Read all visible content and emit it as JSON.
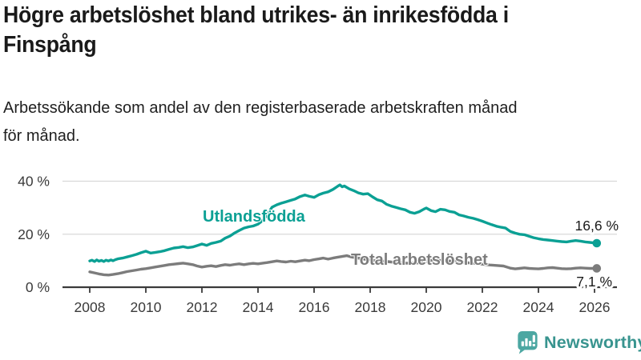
{
  "title": {
    "lines": [
      "Högre arbetslöshet bland utrikes- än inrikesfödda i",
      "Finspång"
    ]
  },
  "subtitle": {
    "lines": [
      "Arbetssökande som andel av den registerbaserade arbetskraften månad",
      "för månad."
    ]
  },
  "chart_data": {
    "type": "line",
    "title": "Högre arbetslöshet bland utrikes- än inrikesfödda i Finspång",
    "subtitle": "Arbetssökande som andel av den registerbaserade arbetskraften månad för månad.",
    "grid": true,
    "colors": {
      "grid": "#d9d9d9",
      "axis": "#3a3a3a",
      "tick_text": "#3a3a3a",
      "end_label_text": "#1a1a1a"
    },
    "x_axis": {
      "range": [
        2008,
        2026.5
      ],
      "ticks": [
        2008,
        2010,
        2012,
        2014,
        2016,
        2018,
        2020,
        2022,
        2024,
        2026
      ],
      "tick_labels": [
        "2008",
        "2010",
        "2012",
        "2014",
        "2016",
        "2018",
        "2020",
        "2022",
        "2024",
        "2026"
      ]
    },
    "y_axis": {
      "range": [
        0,
        40
      ],
      "unit": "%",
      "ticks": [
        0,
        20,
        40
      ],
      "tick_labels": [
        "0 %",
        "20 %",
        "40 %"
      ]
    },
    "series": [
      {
        "name": "Utlandsfödda",
        "color": "#0BA094",
        "end_value": 16.6,
        "end_label": "16,6 %",
        "points": [
          [
            2008.0,
            9.9
          ],
          [
            2008.08,
            10.2
          ],
          [
            2008.17,
            9.7
          ],
          [
            2008.25,
            10.3
          ],
          [
            2008.33,
            9.8
          ],
          [
            2008.42,
            10.1
          ],
          [
            2008.5,
            9.7
          ],
          [
            2008.58,
            10.2
          ],
          [
            2008.67,
            9.9
          ],
          [
            2008.75,
            10.3
          ],
          [
            2008.83,
            10.0
          ],
          [
            2008.92,
            10.4
          ],
          [
            2009.0,
            10.7
          ],
          [
            2009.17,
            11.0
          ],
          [
            2009.33,
            11.4
          ],
          [
            2009.5,
            11.9
          ],
          [
            2009.67,
            12.4
          ],
          [
            2009.83,
            13.0
          ],
          [
            2010.0,
            13.6
          ],
          [
            2010.17,
            12.9
          ],
          [
            2010.33,
            13.1
          ],
          [
            2010.5,
            13.4
          ],
          [
            2010.67,
            13.8
          ],
          [
            2010.83,
            14.3
          ],
          [
            2011.0,
            14.8
          ],
          [
            2011.17,
            15.0
          ],
          [
            2011.33,
            15.3
          ],
          [
            2011.5,
            14.9
          ],
          [
            2011.67,
            15.2
          ],
          [
            2011.83,
            15.7
          ],
          [
            2012.0,
            16.3
          ],
          [
            2012.17,
            15.8
          ],
          [
            2012.33,
            16.5
          ],
          [
            2012.5,
            16.9
          ],
          [
            2012.67,
            17.4
          ],
          [
            2012.83,
            18.5
          ],
          [
            2013.0,
            19.3
          ],
          [
            2013.17,
            20.5
          ],
          [
            2013.33,
            21.4
          ],
          [
            2013.5,
            22.3
          ],
          [
            2013.67,
            22.8
          ],
          [
            2013.83,
            23.1
          ],
          [
            2014.0,
            23.8
          ],
          [
            2014.17,
            25.2
          ],
          [
            2014.33,
            27.3
          ],
          [
            2014.5,
            30.2
          ],
          [
            2014.67,
            31.1
          ],
          [
            2014.83,
            31.7
          ],
          [
            2015.0,
            32.2
          ],
          [
            2015.17,
            32.8
          ],
          [
            2015.33,
            33.3
          ],
          [
            2015.5,
            34.2
          ],
          [
            2015.67,
            34.8
          ],
          [
            2015.83,
            34.3
          ],
          [
            2016.0,
            33.9
          ],
          [
            2016.17,
            34.9
          ],
          [
            2016.33,
            35.5
          ],
          [
            2016.5,
            36.0
          ],
          [
            2016.67,
            36.9
          ],
          [
            2016.83,
            38.0
          ],
          [
            2016.92,
            38.6
          ],
          [
            2017.0,
            37.9
          ],
          [
            2017.08,
            38.2
          ],
          [
            2017.25,
            37.1
          ],
          [
            2017.42,
            36.4
          ],
          [
            2017.58,
            35.6
          ],
          [
            2017.75,
            35.1
          ],
          [
            2017.92,
            35.3
          ],
          [
            2018.08,
            34.1
          ],
          [
            2018.25,
            33.0
          ],
          [
            2018.42,
            32.5
          ],
          [
            2018.58,
            31.3
          ],
          [
            2018.75,
            30.6
          ],
          [
            2018.92,
            30.1
          ],
          [
            2019.08,
            29.6
          ],
          [
            2019.25,
            29.2
          ],
          [
            2019.42,
            28.3
          ],
          [
            2019.58,
            27.9
          ],
          [
            2019.75,
            28.5
          ],
          [
            2019.92,
            29.5
          ],
          [
            2020.0,
            29.9
          ],
          [
            2020.17,
            28.9
          ],
          [
            2020.33,
            28.5
          ],
          [
            2020.5,
            29.4
          ],
          [
            2020.67,
            29.2
          ],
          [
            2020.83,
            28.6
          ],
          [
            2021.0,
            28.3
          ],
          [
            2021.17,
            27.3
          ],
          [
            2021.33,
            26.9
          ],
          [
            2021.5,
            26.4
          ],
          [
            2021.67,
            26.0
          ],
          [
            2021.83,
            25.5
          ],
          [
            2022.0,
            24.9
          ],
          [
            2022.17,
            24.2
          ],
          [
            2022.33,
            23.6
          ],
          [
            2022.5,
            23.0
          ],
          [
            2022.67,
            22.6
          ],
          [
            2022.83,
            22.3
          ],
          [
            2023.0,
            21.0
          ],
          [
            2023.17,
            20.4
          ],
          [
            2023.33,
            20.0
          ],
          [
            2023.5,
            19.8
          ],
          [
            2023.67,
            19.2
          ],
          [
            2023.83,
            18.7
          ],
          [
            2024.0,
            18.3
          ],
          [
            2024.17,
            18.0
          ],
          [
            2024.33,
            17.8
          ],
          [
            2024.5,
            17.6
          ],
          [
            2024.67,
            17.4
          ],
          [
            2024.83,
            17.2
          ],
          [
            2025.0,
            17.1
          ],
          [
            2025.17,
            17.4
          ],
          [
            2025.33,
            17.6
          ],
          [
            2025.5,
            17.4
          ],
          [
            2025.67,
            17.1
          ],
          [
            2025.83,
            16.9
          ],
          [
            2026.0,
            16.7
          ],
          [
            2026.08,
            16.6
          ]
        ]
      },
      {
        "name": "Total arbetslöshet",
        "color": "#7C7C7C",
        "end_value": 7.1,
        "end_label": "7,1 %",
        "points": [
          [
            2008.0,
            5.8
          ],
          [
            2008.17,
            5.4
          ],
          [
            2008.33,
            5.0
          ],
          [
            2008.5,
            4.7
          ],
          [
            2008.67,
            4.6
          ],
          [
            2008.83,
            4.8
          ],
          [
            2009.0,
            5.1
          ],
          [
            2009.17,
            5.5
          ],
          [
            2009.33,
            5.9
          ],
          [
            2009.5,
            6.2
          ],
          [
            2009.67,
            6.5
          ],
          [
            2009.83,
            6.8
          ],
          [
            2010.0,
            7.0
          ],
          [
            2010.17,
            7.3
          ],
          [
            2010.33,
            7.6
          ],
          [
            2010.5,
            7.9
          ],
          [
            2010.67,
            8.2
          ],
          [
            2010.83,
            8.5
          ],
          [
            2011.0,
            8.7
          ],
          [
            2011.17,
            8.9
          ],
          [
            2011.33,
            9.1
          ],
          [
            2011.5,
            8.8
          ],
          [
            2011.67,
            8.5
          ],
          [
            2011.83,
            8.0
          ],
          [
            2012.0,
            7.6
          ],
          [
            2012.17,
            7.9
          ],
          [
            2012.33,
            8.1
          ],
          [
            2012.5,
            7.8
          ],
          [
            2012.67,
            8.2
          ],
          [
            2012.83,
            8.5
          ],
          [
            2013.0,
            8.3
          ],
          [
            2013.17,
            8.6
          ],
          [
            2013.33,
            8.8
          ],
          [
            2013.5,
            8.5
          ],
          [
            2013.67,
            8.8
          ],
          [
            2013.83,
            9.0
          ],
          [
            2014.0,
            8.8
          ],
          [
            2014.17,
            9.1
          ],
          [
            2014.33,
            9.3
          ],
          [
            2014.5,
            9.6
          ],
          [
            2014.67,
            9.9
          ],
          [
            2014.83,
            9.7
          ],
          [
            2015.0,
            9.5
          ],
          [
            2015.17,
            9.8
          ],
          [
            2015.33,
            9.6
          ],
          [
            2015.5,
            9.9
          ],
          [
            2015.67,
            10.2
          ],
          [
            2015.83,
            10.0
          ],
          [
            2016.0,
            10.4
          ],
          [
            2016.17,
            10.7
          ],
          [
            2016.33,
            11.0
          ],
          [
            2016.5,
            10.6
          ],
          [
            2016.67,
            11.0
          ],
          [
            2016.83,
            11.3
          ],
          [
            2017.0,
            11.6
          ],
          [
            2017.17,
            11.9
          ],
          [
            2017.33,
            11.4
          ],
          [
            2017.5,
            11.1
          ],
          [
            2017.67,
            10.8
          ],
          [
            2017.83,
            10.5
          ],
          [
            2018.0,
            10.3
          ],
          [
            2018.25,
            10.0
          ],
          [
            2018.5,
            9.8
          ],
          [
            2018.75,
            9.5
          ],
          [
            2019.0,
            9.3
          ],
          [
            2019.25,
            9.1
          ],
          [
            2019.5,
            9.0
          ],
          [
            2019.75,
            9.2
          ],
          [
            2020.0,
            9.6
          ],
          [
            2020.17,
            10.1
          ],
          [
            2020.33,
            10.4
          ],
          [
            2020.5,
            10.2
          ],
          [
            2020.75,
            10.0
          ],
          [
            2021.0,
            9.7
          ],
          [
            2021.25,
            9.5
          ],
          [
            2021.5,
            9.2
          ],
          [
            2021.75,
            9.0
          ],
          [
            2022.0,
            8.7
          ],
          [
            2022.25,
            8.4
          ],
          [
            2022.5,
            8.2
          ],
          [
            2022.75,
            8.0
          ],
          [
            2023.0,
            7.2
          ],
          [
            2023.17,
            6.9
          ],
          [
            2023.33,
            7.1
          ],
          [
            2023.5,
            7.3
          ],
          [
            2023.67,
            7.1
          ],
          [
            2023.83,
            7.0
          ],
          [
            2024.0,
            6.9
          ],
          [
            2024.17,
            7.1
          ],
          [
            2024.33,
            7.3
          ],
          [
            2024.5,
            7.4
          ],
          [
            2024.67,
            7.2
          ],
          [
            2024.83,
            7.0
          ],
          [
            2025.0,
            6.9
          ],
          [
            2025.17,
            7.0
          ],
          [
            2025.33,
            7.2
          ],
          [
            2025.5,
            7.3
          ],
          [
            2025.67,
            7.2
          ],
          [
            2025.83,
            7.1
          ],
          [
            2026.0,
            7.1
          ],
          [
            2026.08,
            7.1
          ]
        ]
      }
    ]
  },
  "footer": {
    "brand": "Newsworthy",
    "brand_color": "#38948F",
    "icon_color": "#4CA7A2"
  }
}
